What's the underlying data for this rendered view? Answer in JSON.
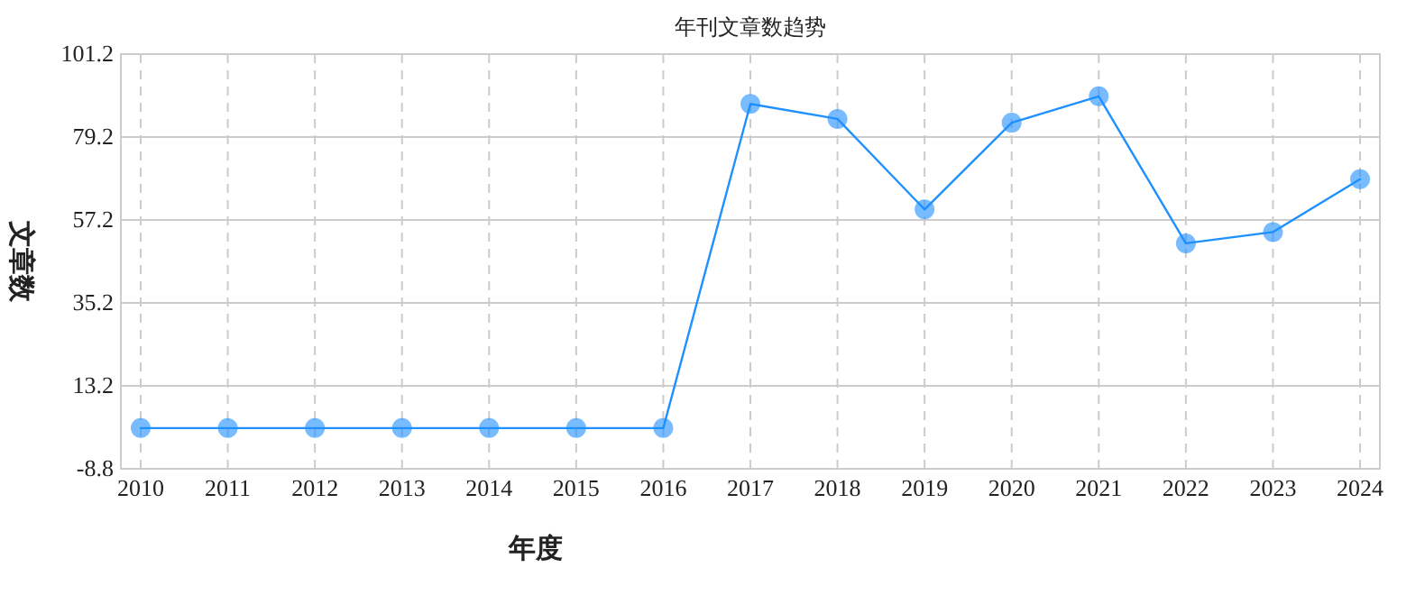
{
  "chart_data": {
    "type": "line",
    "title": "年刊文章数趋势",
    "xlabel": "年度",
    "ylabel": "文章数",
    "categories": [
      "2010",
      "2011",
      "2012",
      "2013",
      "2014",
      "2015",
      "2016",
      "2017",
      "2018",
      "2019",
      "2020",
      "2021",
      "2022",
      "2023",
      "2024"
    ],
    "series": [
      {
        "color": "#1e90ff",
        "values": [
          2,
          2,
          2,
          2,
          2,
          2,
          2,
          88,
          84,
          60,
          83,
          90,
          51,
          54,
          68
        ]
      }
    ],
    "ylim": [
      -8.8,
      101.2
    ],
    "yticks": [
      -8.8,
      13.2,
      35.2,
      57.2,
      79.2,
      101.2
    ],
    "grid": true,
    "marker": "circle",
    "line_style": "solid"
  }
}
